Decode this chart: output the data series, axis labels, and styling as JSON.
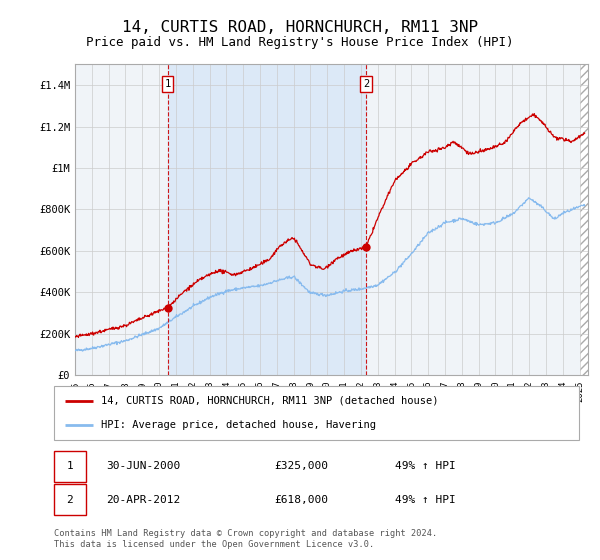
{
  "title": "14, CURTIS ROAD, HORNCHURCH, RM11 3NP",
  "subtitle": "Price paid vs. HM Land Registry's House Price Index (HPI)",
  "title_fontsize": 11.5,
  "subtitle_fontsize": 9,
  "xmin": 1995.0,
  "xmax": 2025.5,
  "ymin": 0,
  "ymax": 1500000,
  "yticks": [
    0,
    200000,
    400000,
    600000,
    800000,
    1000000,
    1200000,
    1400000
  ],
  "ytick_labels": [
    "£0",
    "£200K",
    "£400K",
    "£600K",
    "£800K",
    "£1M",
    "£1.2M",
    "£1.4M"
  ],
  "xtick_years": [
    1995,
    1996,
    1997,
    1998,
    1999,
    2000,
    2001,
    2002,
    2003,
    2004,
    2005,
    2006,
    2007,
    2008,
    2009,
    2010,
    2011,
    2012,
    2013,
    2014,
    2015,
    2016,
    2017,
    2018,
    2019,
    2020,
    2021,
    2022,
    2023,
    2024,
    2025
  ],
  "shaded_region": [
    2000.5,
    2012.3
  ],
  "shaded_color": "#dce9f7",
  "red_line_color": "#cc0000",
  "blue_line_color": "#88bbee",
  "grid_color": "#cccccc",
  "background_color": "#f0f4f8",
  "sale1_x": 2000.5,
  "sale1_y": 325000,
  "sale2_x": 2012.3,
  "sale2_y": 618000,
  "legend_line1": "14, CURTIS ROAD, HORNCHURCH, RM11 3NP (detached house)",
  "legend_line2": "HPI: Average price, detached house, Havering",
  "table_row1": [
    "1",
    "30-JUN-2000",
    "£325,000",
    "49% ↑ HPI"
  ],
  "table_row2": [
    "2",
    "20-APR-2012",
    "£618,000",
    "49% ↑ HPI"
  ],
  "footer": "Contains HM Land Registry data © Crown copyright and database right 2024.\nThis data is licensed under the Open Government Licence v3.0."
}
